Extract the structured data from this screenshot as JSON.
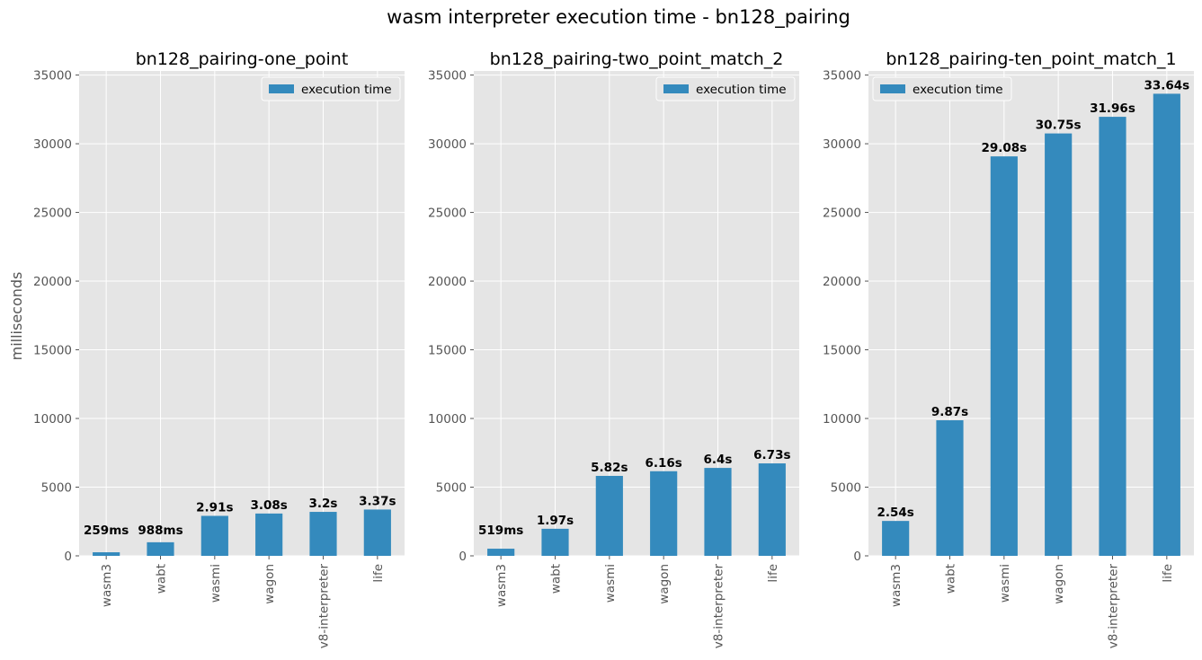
{
  "figure": {
    "title": "wasm interpreter execution time - bn128_pairing",
    "ylabel": "milliseconds",
    "legend_label": "execution time",
    "bar_color": "#348ABD",
    "axes_bg": "#E5E5E5"
  },
  "chart_data": [
    {
      "type": "bar",
      "title": "bn128_pairing-one_point",
      "categories": [
        "wasm3",
        "wabt",
        "wasmi",
        "wagon",
        "v8-interpreter",
        "life"
      ],
      "series": [
        {
          "name": "execution time",
          "values": [
            259,
            988,
            2910,
            3080,
            3200,
            3370
          ]
        }
      ],
      "value_labels": [
        "259ms",
        "988ms",
        "2.91s",
        "3.08s",
        "3.2s",
        "3.37s"
      ],
      "ylabel": "milliseconds",
      "ylim": [
        0,
        35300
      ],
      "yticks": [
        "0",
        "5000",
        "10000",
        "15000",
        "20000",
        "25000",
        "30000",
        "35000"
      ],
      "legend": "top-right",
      "grid": true
    },
    {
      "type": "bar",
      "title": "bn128_pairing-two_point_match_2",
      "categories": [
        "wasm3",
        "wabt",
        "wasmi",
        "wagon",
        "v8-interpreter",
        "life"
      ],
      "series": [
        {
          "name": "execution time",
          "values": [
            519,
            1970,
            5820,
            6160,
            6400,
            6730
          ]
        }
      ],
      "value_labels": [
        "519ms",
        "1.97s",
        "5.82s",
        "6.16s",
        "6.4s",
        "6.73s"
      ],
      "ylabel": "",
      "ylim": [
        0,
        35300
      ],
      "yticks": [
        "0",
        "5000",
        "10000",
        "15000",
        "20000",
        "25000",
        "30000",
        "35000"
      ],
      "legend": "top-right",
      "grid": true
    },
    {
      "type": "bar",
      "title": "bn128_pairing-ten_point_match_1",
      "categories": [
        "wasm3",
        "wabt",
        "wasmi",
        "wagon",
        "v8-interpreter",
        "life"
      ],
      "series": [
        {
          "name": "execution time",
          "values": [
            2540,
            9870,
            29080,
            30750,
            31960,
            33640
          ]
        }
      ],
      "value_labels": [
        "2.54s",
        "9.87s",
        "29.08s",
        "30.75s",
        "31.96s",
        "33.64s"
      ],
      "ylabel": "",
      "ylim": [
        0,
        35300
      ],
      "yticks": [
        "0",
        "5000",
        "10000",
        "15000",
        "20000",
        "25000",
        "30000",
        "35000"
      ],
      "legend": "top-left",
      "grid": true
    }
  ]
}
